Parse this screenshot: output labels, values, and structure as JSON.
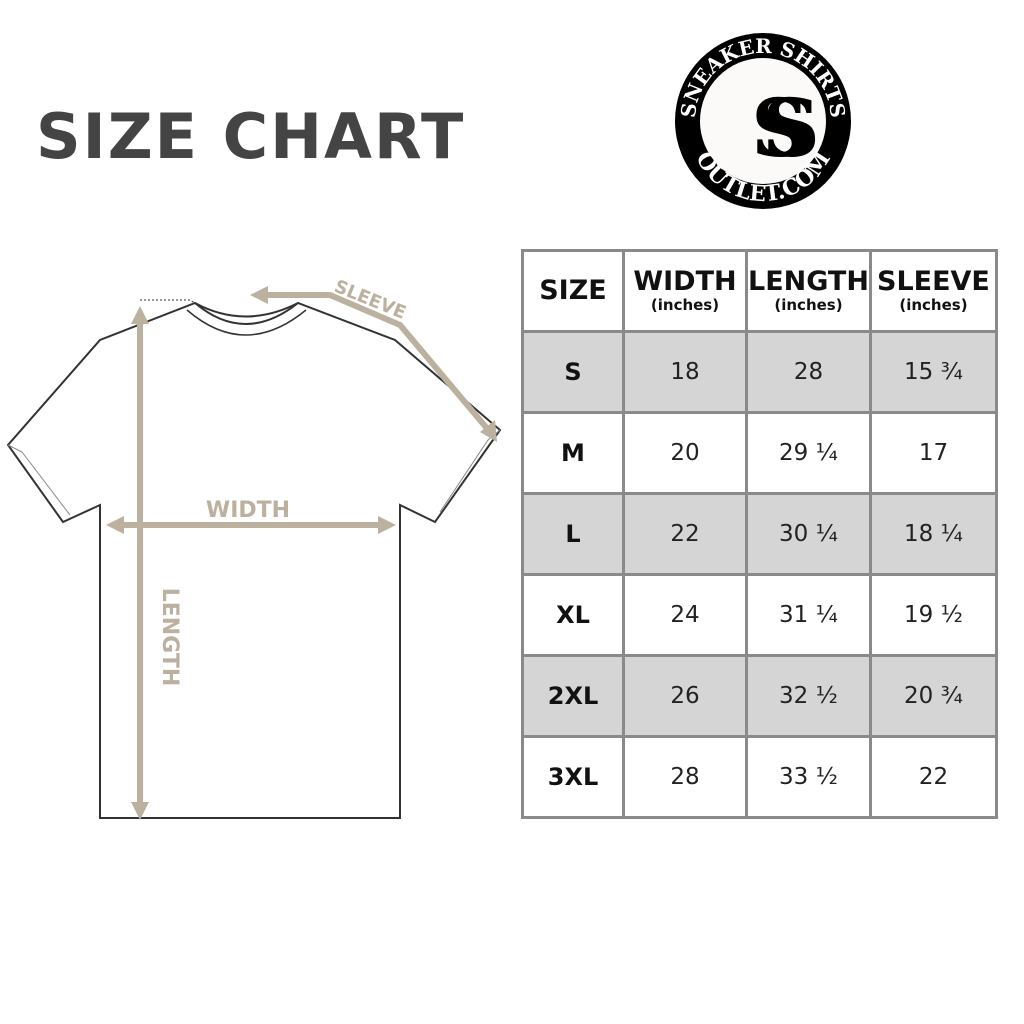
{
  "title": "SIZE CHART",
  "logo": {
    "text_top": "SNEAKER SHIRTS",
    "text_bottom": "OUTLET.COM",
    "monogram": "SS"
  },
  "diagram": {
    "sleeve": "SLEEVE",
    "width": "WIDTH",
    "length": "LENGTH",
    "accent": "#bcb09f"
  },
  "table": {
    "headers": [
      {
        "label": "SIZE",
        "unit": ""
      },
      {
        "label": "WIDTH",
        "unit": "(inches)"
      },
      {
        "label": "LENGTH",
        "unit": "(inches)"
      },
      {
        "label": "SLEEVE",
        "unit": "(inches)"
      }
    ],
    "rows": [
      [
        "S",
        "18",
        "28",
        "15 ¾"
      ],
      [
        "M",
        "20",
        "29 ¼",
        "17"
      ],
      [
        "L",
        "22",
        "30 ¼",
        "18 ¼"
      ],
      [
        "XL",
        "24",
        "31 ¼",
        "19 ½"
      ],
      [
        "2XL",
        "26",
        "32 ½",
        "20 ¾"
      ],
      [
        "3XL",
        "28",
        "33 ½",
        "22"
      ]
    ]
  }
}
